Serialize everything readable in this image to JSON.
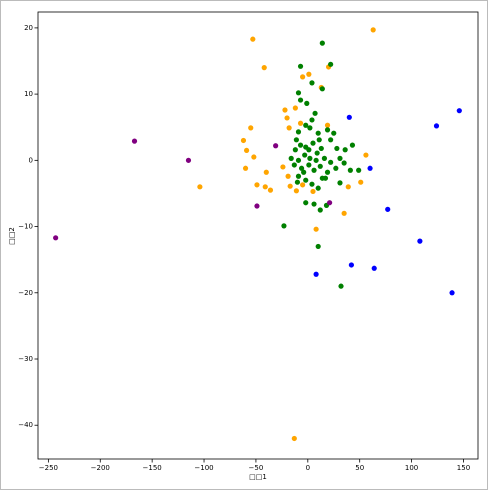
{
  "chart_data": {
    "type": "scatter",
    "xlabel": "□□1",
    "ylabel": "□□2",
    "xlim": [
      -260,
      164
    ],
    "ylim": [
      -45.1,
      22.4
    ],
    "xticks": [
      {
        "value": -250,
        "label": "−250"
      },
      {
        "value": -200,
        "label": "−200"
      },
      {
        "value": -150,
        "label": "−150"
      },
      {
        "value": -100,
        "label": "−100"
      },
      {
        "value": -50,
        "label": "−50"
      },
      0,
      50,
      100,
      150
    ],
    "yticks": [
      {
        "value": -40,
        "label": "−40"
      },
      {
        "value": -30,
        "label": "−30"
      },
      {
        "value": -20,
        "label": "−20"
      },
      {
        "value": -10,
        "label": "−10"
      },
      0,
      10,
      20
    ],
    "series": [
      {
        "color": "#ffa500",
        "x": [
          63,
          -53,
          -42,
          20,
          -5,
          1,
          13,
          -55,
          -62,
          -59,
          -52,
          -60,
          -49,
          -41,
          -36,
          -40,
          -104,
          -22,
          -20,
          -12,
          -7,
          -18,
          -24,
          -19,
          -17,
          -11,
          -5,
          8,
          35,
          39,
          56,
          51,
          -13,
          5,
          19
        ],
        "values": [
          19.7,
          18.3,
          14,
          14.1,
          12.6,
          13,
          11,
          4.9,
          3,
          1.5,
          0.5,
          -1.2,
          -3.7,
          -4,
          -4.5,
          -1.8,
          -4,
          7.6,
          6.4,
          7.9,
          5.6,
          4.9,
          -1,
          -2.4,
          -3.9,
          -4.6,
          -3.7,
          -10.4,
          -8,
          -4,
          0.8,
          -3.3,
          -42,
          -4.7,
          5.3
        ]
      },
      {
        "color": "#008000",
        "x": [
          14,
          22,
          -7,
          -9,
          4,
          14,
          -7,
          -1,
          7,
          -9,
          2,
          10,
          19,
          25,
          -7,
          -12,
          -2,
          5,
          13,
          -16,
          -9,
          -3,
          2,
          9,
          16,
          22,
          31,
          36,
          43,
          -13,
          -6,
          1,
          6,
          12,
          19,
          27,
          41,
          -9,
          -2,
          4,
          10,
          17,
          31,
          49,
          -2,
          6,
          12,
          18,
          -23,
          10,
          32,
          4,
          -2,
          -11,
          11,
          1,
          -4,
          8,
          14,
          -10,
          22,
          28,
          35
        ],
        "values": [
          17.7,
          14.5,
          14.2,
          10.2,
          11.7,
          10.8,
          9.1,
          8.6,
          7.1,
          4.3,
          4.9,
          4.1,
          4.6,
          4.1,
          2.3,
          1.6,
          2,
          2.6,
          1.8,
          0.3,
          0,
          0.8,
          0.3,
          1.1,
          0.3,
          -0.3,
          0.3,
          1.6,
          2.3,
          -0.7,
          -1.2,
          -0.7,
          -1.5,
          -0.9,
          -1.8,
          -1.2,
          -1.5,
          -2.4,
          -3,
          -3.6,
          -4.2,
          -2.7,
          -3.4,
          -1.5,
          -6.4,
          -6.6,
          -7.5,
          -6.8,
          -9.9,
          -13,
          -19,
          6.1,
          5.3,
          3.1,
          3.1,
          1.6,
          -1.8,
          0,
          -2.7,
          -3.3,
          3.1,
          1.8,
          -0.4
        ]
      },
      {
        "color": "#0000ff",
        "x": [
          146,
          124,
          40,
          60,
          77,
          108,
          42,
          64,
          8,
          139
        ],
        "values": [
          7.5,
          5.2,
          6.5,
          -1.2,
          -7.4,
          -12.2,
          -15.8,
          -16.3,
          -17.2,
          -20
        ]
      },
      {
        "color": "#800080",
        "x": [
          -243,
          -167,
          -115,
          -49,
          -31,
          21
        ],
        "values": [
          -11.7,
          2.9,
          0,
          -6.9,
          2.2,
          -6.4
        ]
      }
    ]
  }
}
